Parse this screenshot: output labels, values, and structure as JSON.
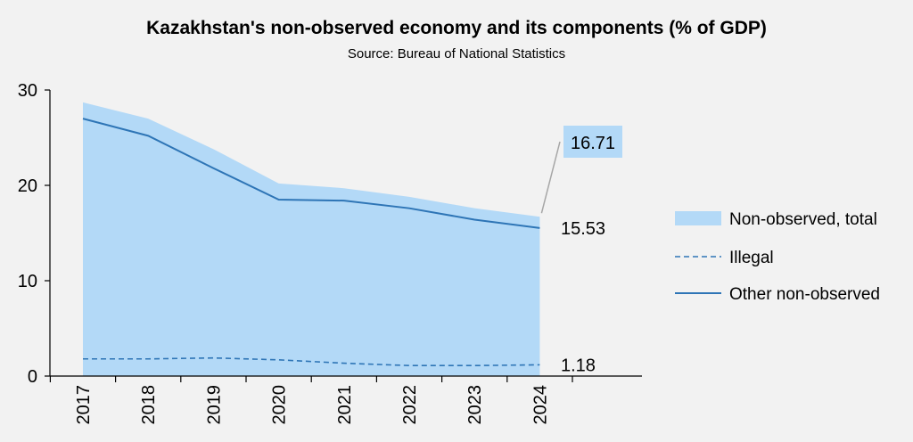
{
  "chart_data": {
    "type": "area",
    "title": "Kazakhstan's non-observed economy and its components (% of GDP)",
    "subtitle": "Source: Bureau of National Statistics",
    "xlabel": "",
    "ylabel": "",
    "categories": [
      "2017",
      "2018",
      "2019",
      "2020",
      "2021",
      "2022",
      "2023",
      "2024"
    ],
    "ylim": [
      0,
      30
    ],
    "yticks": [
      0,
      10,
      20,
      30
    ],
    "grid": false,
    "legend_position": "right",
    "series": [
      {
        "name": "Non-observed, total",
        "style": "area",
        "color": "#b3d9f7",
        "values": [
          28.7,
          27.0,
          23.8,
          20.2,
          19.7,
          18.8,
          17.6,
          16.71
        ]
      },
      {
        "name": "Illegal",
        "style": "dashed-line",
        "color": "#2e75b6",
        "values": [
          1.8,
          1.8,
          1.9,
          1.7,
          1.35,
          1.1,
          1.1,
          1.18
        ]
      },
      {
        "name": "Other non-observed",
        "style": "line",
        "color": "#2e75b6",
        "values": [
          27.0,
          25.2,
          21.8,
          18.5,
          18.4,
          17.6,
          16.4,
          15.53
        ]
      }
    ],
    "annotations": [
      {
        "series": "Non-observed, total",
        "text": "16.71",
        "boxed": true
      },
      {
        "series": "Other non-observed",
        "text": "15.53"
      },
      {
        "series": "Illegal",
        "text": "1.18"
      }
    ]
  }
}
